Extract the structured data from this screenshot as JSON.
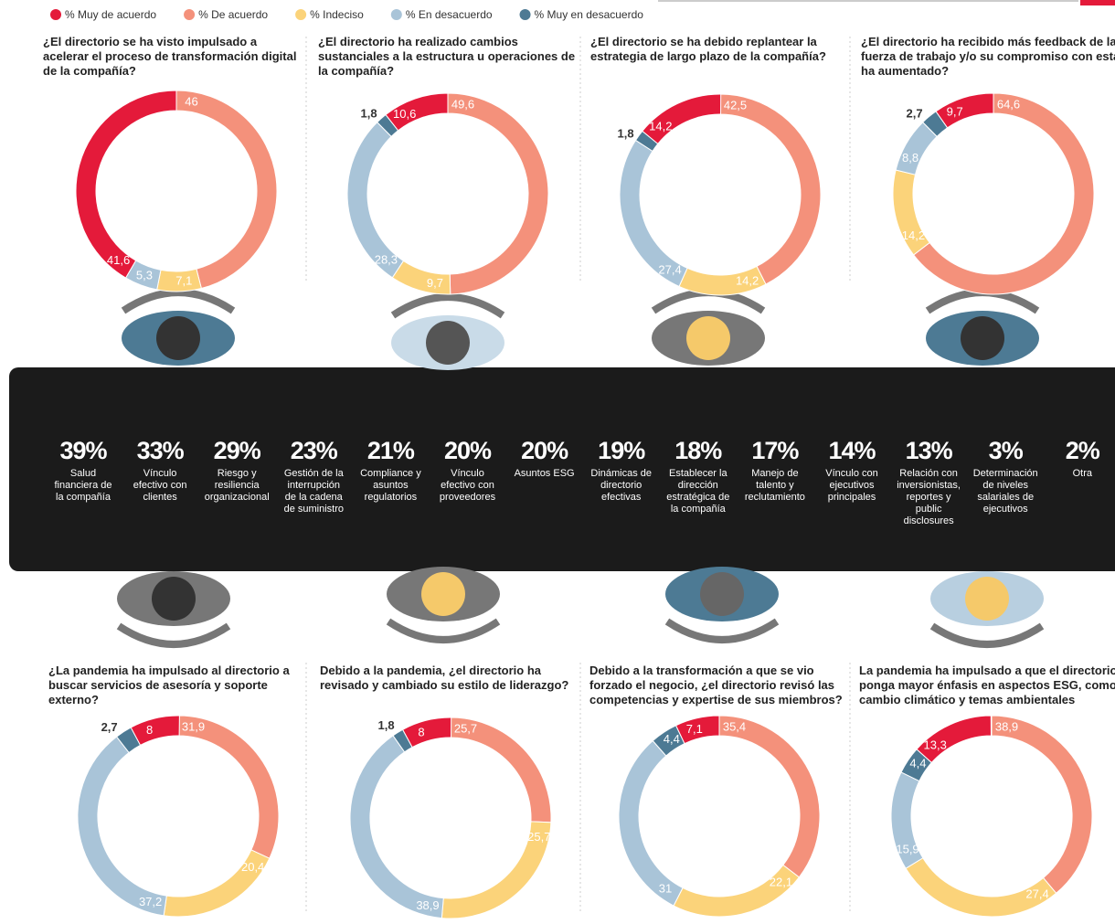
{
  "legend": [
    {
      "name": "% Muy de acuerdo",
      "color": "#e41a3a"
    },
    {
      "name": "% De acuerdo",
      "color": "#f4917b"
    },
    {
      "name": "% Indeciso",
      "color": "#fbd37a"
    },
    {
      "name": "% En desacuerdo",
      "color": "#a9c4d8"
    },
    {
      "name": "% Muy en desacuerdo",
      "color": "#4d7a94"
    }
  ],
  "chart_data": [
    {
      "type": "donut",
      "title": "¿El directorio se ha visto impulsado a acelerar el proceso de transformación digital de la compañía?",
      "values": [
        41.6,
        46,
        7.1,
        5.3,
        null
      ],
      "value_labels": [
        "41,6",
        "46",
        "7,1",
        "5,3",
        null
      ]
    },
    {
      "type": "donut",
      "title": "¿El directorio ha realizado cambios sustanciales a la estructura u operaciones de la compañía?",
      "values": [
        10.6,
        49.6,
        9.7,
        28.3,
        1.8
      ],
      "value_labels": [
        "10,6",
        "49,6",
        "9,7",
        "28,3",
        "1,8"
      ]
    },
    {
      "type": "donut",
      "title": "¿El directorio se ha debido replantear la estrategia de largo plazo de la compañía?",
      "values": [
        14.2,
        42.5,
        14.2,
        27.4,
        1.8
      ],
      "value_labels": [
        "14,2",
        "42,5",
        "14,2",
        "27,4",
        "1,8"
      ]
    },
    {
      "type": "donut",
      "title": "¿El directorio ha recibido más feedback de la fuerza de trabajo y/o su compromiso con esta ha aumentado?",
      "values": [
        9.7,
        64.6,
        14.2,
        8.8,
        2.7
      ],
      "value_labels": [
        "9,7",
        "64,6",
        "14,2",
        "8,8",
        "2,7"
      ]
    },
    {
      "type": "donut",
      "title": "¿La pandemia ha impulsado al directorio a buscar servicios de asesoría y soporte externo?",
      "values": [
        8,
        31.9,
        20.4,
        37.2,
        2.7
      ],
      "value_labels": [
        "8",
        "31,9",
        "20,4",
        "37,2",
        "2,7"
      ]
    },
    {
      "type": "donut",
      "title": "Debido a la pandemia, ¿el directorio ha revisado y cambiado su estilo de liderazgo?",
      "values": [
        8,
        25.7,
        25.7,
        38.9,
        1.8
      ],
      "value_labels": [
        "8",
        "25,7",
        "25,7",
        "38,9",
        "1,8"
      ]
    },
    {
      "type": "donut",
      "title": "Debido a la transformación a que se vio forzado el negocio, ¿el directorio revisó las competencias y expertise de sus miembros?",
      "values": [
        7.1,
        35.4,
        22.1,
        31,
        4.4
      ],
      "value_labels": [
        "7,1",
        "35,4",
        "22,1",
        "31",
        "4,4"
      ]
    },
    {
      "type": "donut",
      "title": "La pandemia ha impulsado a que el directorio ponga mayor énfasis en aspectos ESG, como cambio climático y temas ambientales",
      "values": [
        13.3,
        38.9,
        27.4,
        15.9,
        4.4
      ],
      "value_labels": [
        "13,3",
        "38,9",
        "27,4",
        "15,9",
        "4,4"
      ]
    }
  ],
  "topics": [
    {
      "percent": "39%",
      "lines": [
        "Salud",
        "financiera de",
        "la compañía"
      ]
    },
    {
      "percent": "33%",
      "lines": [
        "Vínculo",
        "efectivo con",
        "clientes"
      ]
    },
    {
      "percent": "29%",
      "lines": [
        "Riesgo y",
        "resiliencia",
        "organizacional"
      ]
    },
    {
      "percent": "23%",
      "lines": [
        "Gestión de la",
        "interrupción",
        "de la cadena",
        "de suministro"
      ]
    },
    {
      "percent": "21%",
      "lines": [
        "Compliance y",
        "asuntos",
        "regulatorios"
      ]
    },
    {
      "percent": "20%",
      "lines": [
        "Vínculo",
        "efectivo con",
        "proveedores"
      ]
    },
    {
      "percent": "20%",
      "lines": [
        "Asuntos ESG"
      ]
    },
    {
      "percent": "19%",
      "lines": [
        "Dinámicas de",
        "directorio",
        "efectivas"
      ]
    },
    {
      "percent": "18%",
      "lines": [
        "Establecer la",
        "dirección",
        "estratégica de",
        "la compañía"
      ]
    },
    {
      "percent": "17%",
      "lines": [
        "Manejo de",
        "talento y",
        "reclutamiento"
      ]
    },
    {
      "percent": "14%",
      "lines": [
        "Vínculo con",
        "ejecutivos",
        "principales"
      ]
    },
    {
      "percent": "13%",
      "lines": [
        "Relación con",
        "inversionistas,",
        "reportes y",
        "public",
        "disclosures"
      ]
    },
    {
      "percent": "3%",
      "lines": [
        "Determinación",
        "de niveles",
        "salariales de",
        "ejecutivos"
      ]
    },
    {
      "percent": "2%",
      "lines": [
        "Otra"
      ]
    }
  ]
}
